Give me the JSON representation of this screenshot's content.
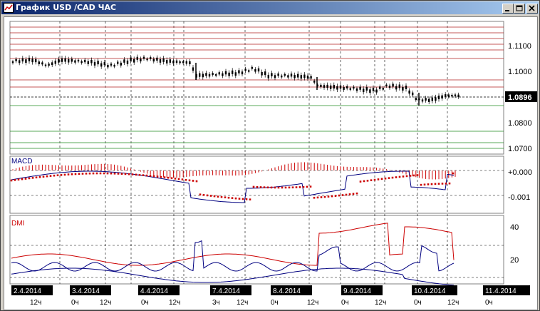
{
  "window": {
    "title": "График USD /CAD  ЧАС",
    "colors": {
      "titlebar_start": "#0a246a",
      "titlebar_end": "#a6caf0"
    }
  },
  "price_panel": {
    "axis_labels": [
      "1.1100",
      "1.1000",
      "1.0896",
      "1.0800",
      "1.0700"
    ],
    "current_price": "1.0896"
  },
  "macd_panel": {
    "label": "MACD",
    "axis_labels": [
      "+0.000",
      "-0.001"
    ]
  },
  "dmi_panel": {
    "label": "DMI",
    "axis_labels": [
      "40",
      "20"
    ]
  },
  "time_axis": {
    "dates": [
      "2.4.2014",
      "3.4.2014",
      "4.4.2014",
      "7.4.2014",
      "8.4.2014",
      "9.4.2014",
      "10.4.2014",
      "11.4.2014"
    ],
    "hours": [
      "12ч",
      "0ч",
      "12ч",
      "0ч",
      "12ч",
      "3ч",
      "12ч",
      "0ч",
      "12ч",
      "0ч",
      "12ч",
      "0ч",
      "12ч",
      "0ч"
    ]
  },
  "colors": {
    "red_levels": "#b22222",
    "green_levels": "#228b22",
    "macd_signal": "#cc0000",
    "macd_line": "#000080",
    "dmi_plus": "#000080",
    "dmi_minus": "#cc0000",
    "adx": "#000080"
  },
  "icons": [
    "chart-window-icon",
    "minimize-icon",
    "maximize-icon",
    "close-icon"
  ]
}
